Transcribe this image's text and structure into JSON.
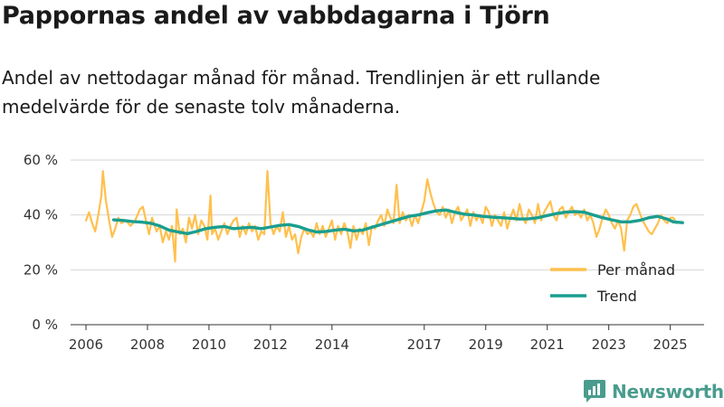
{
  "chart_data": {
    "type": "line",
    "title": "Pappornas andel av vabbdagarna i Tjörn",
    "subtitle": "Andel av nettodagar månad för månad. Trendlinjen är ett rullande medelvärde för de senaste tolv månaderna.",
    "xlabel": "",
    "ylabel": "",
    "ylim": [
      0,
      60
    ],
    "xlim": [
      2005.5,
      2026.1
    ],
    "yticks": [
      {
        "value": 0,
        "label": "0 %"
      },
      {
        "value": 20,
        "label": "20 %"
      },
      {
        "value": 40,
        "label": "40 %"
      },
      {
        "value": 60,
        "label": "60 %"
      }
    ],
    "xticks": [
      {
        "value": 2006,
        "label": "2006"
      },
      {
        "value": 2008,
        "label": "2008"
      },
      {
        "value": 2010,
        "label": "2010"
      },
      {
        "value": 2012,
        "label": "2012"
      },
      {
        "value": 2014,
        "label": "2014"
      },
      {
        "value": 2017,
        "label": "2017"
      },
      {
        "value": 2019,
        "label": "2019"
      },
      {
        "value": 2021,
        "label": "2021"
      },
      {
        "value": 2023,
        "label": "2023"
      },
      {
        "value": 2025,
        "label": "2025"
      }
    ],
    "grid": true,
    "legend_position": "bottom-right",
    "series": [
      {
        "name": "Per månad",
        "color": "#FFC04D",
        "points": [
          [
            2006.0,
            38
          ],
          [
            2006.1,
            41
          ],
          [
            2006.2,
            37
          ],
          [
            2006.3,
            34
          ],
          [
            2006.4,
            40
          ],
          [
            2006.5,
            47
          ],
          [
            2006.55,
            56
          ],
          [
            2006.65,
            45
          ],
          [
            2006.75,
            38
          ],
          [
            2006.85,
            32
          ],
          [
            2006.95,
            35
          ],
          [
            2007.05,
            39
          ],
          [
            2007.15,
            37
          ],
          [
            2007.3,
            38
          ],
          [
            2007.45,
            36
          ],
          [
            2007.6,
            38
          ],
          [
            2007.75,
            42
          ],
          [
            2007.85,
            43
          ],
          [
            2007.95,
            38
          ],
          [
            2008.05,
            33
          ],
          [
            2008.15,
            39
          ],
          [
            2008.3,
            34
          ],
          [
            2008.4,
            36
          ],
          [
            2008.5,
            30
          ],
          [
            2008.6,
            34
          ],
          [
            2008.7,
            31
          ],
          [
            2008.8,
            36
          ],
          [
            2008.9,
            23
          ],
          [
            2008.95,
            42
          ],
          [
            2009.05,
            33
          ],
          [
            2009.15,
            35
          ],
          [
            2009.25,
            30
          ],
          [
            2009.35,
            39
          ],
          [
            2009.45,
            35
          ],
          [
            2009.55,
            40
          ],
          [
            2009.65,
            33
          ],
          [
            2009.75,
            38
          ],
          [
            2009.85,
            36
          ],
          [
            2009.95,
            31
          ],
          [
            2010.05,
            47
          ],
          [
            2010.1,
            33
          ],
          [
            2010.2,
            35
          ],
          [
            2010.3,
            31
          ],
          [
            2010.4,
            34
          ],
          [
            2010.5,
            37
          ],
          [
            2010.6,
            33
          ],
          [
            2010.7,
            36
          ],
          [
            2010.8,
            38
          ],
          [
            2010.9,
            39
          ],
          [
            2011.0,
            32
          ],
          [
            2011.1,
            36
          ],
          [
            2011.2,
            33
          ],
          [
            2011.3,
            37
          ],
          [
            2011.4,
            34
          ],
          [
            2011.5,
            36
          ],
          [
            2011.6,
            31
          ],
          [
            2011.7,
            34
          ],
          [
            2011.8,
            33
          ],
          [
            2011.9,
            56
          ],
          [
            2012.0,
            37
          ],
          [
            2012.1,
            33
          ],
          [
            2012.2,
            36
          ],
          [
            2012.3,
            34
          ],
          [
            2012.4,
            41
          ],
          [
            2012.5,
            32
          ],
          [
            2012.6,
            36
          ],
          [
            2012.7,
            31
          ],
          [
            2012.8,
            33
          ],
          [
            2012.9,
            26
          ],
          [
            2013.0,
            32
          ],
          [
            2013.1,
            35
          ],
          [
            2013.2,
            33
          ],
          [
            2013.3,
            34
          ],
          [
            2013.4,
            32
          ],
          [
            2013.5,
            37
          ],
          [
            2013.6,
            33
          ],
          [
            2013.7,
            36
          ],
          [
            2013.8,
            32
          ],
          [
            2013.9,
            35
          ],
          [
            2014.0,
            38
          ],
          [
            2014.1,
            31
          ],
          [
            2014.2,
            36
          ],
          [
            2014.3,
            33
          ],
          [
            2014.4,
            37
          ],
          [
            2014.5,
            34
          ],
          [
            2014.6,
            28
          ],
          [
            2014.7,
            36
          ],
          [
            2014.8,
            31
          ],
          [
            2014.9,
            35
          ],
          [
            2015.0,
            33
          ],
          [
            2015.1,
            37
          ],
          [
            2015.2,
            29
          ],
          [
            2015.3,
            36
          ],
          [
            2015.4,
            35
          ],
          [
            2015.5,
            38
          ],
          [
            2015.6,
            40
          ],
          [
            2015.7,
            36
          ],
          [
            2015.8,
            42
          ],
          [
            2015.9,
            39
          ],
          [
            2016.0,
            37
          ],
          [
            2016.1,
            51
          ],
          [
            2016.2,
            37
          ],
          [
            2016.3,
            41
          ],
          [
            2016.4,
            38
          ],
          [
            2016.5,
            40
          ],
          [
            2016.6,
            36
          ],
          [
            2016.7,
            40
          ],
          [
            2016.8,
            37
          ],
          [
            2016.9,
            41
          ],
          [
            2017.0,
            45
          ],
          [
            2017.1,
            53
          ],
          [
            2017.2,
            48
          ],
          [
            2017.3,
            44
          ],
          [
            2017.4,
            41
          ],
          [
            2017.5,
            40
          ],
          [
            2017.6,
            43
          ],
          [
            2017.7,
            39
          ],
          [
            2017.8,
            42
          ],
          [
            2017.9,
            37
          ],
          [
            2018.0,
            41
          ],
          [
            2018.1,
            43
          ],
          [
            2018.2,
            38
          ],
          [
            2018.3,
            40
          ],
          [
            2018.4,
            42
          ],
          [
            2018.5,
            36
          ],
          [
            2018.6,
            41
          ],
          [
            2018.7,
            38
          ],
          [
            2018.8,
            40
          ],
          [
            2018.9,
            37
          ],
          [
            2019.0,
            43
          ],
          [
            2019.1,
            41
          ],
          [
            2019.2,
            36
          ],
          [
            2019.3,
            40
          ],
          [
            2019.4,
            38
          ],
          [
            2019.5,
            36
          ],
          [
            2019.6,
            41
          ],
          [
            2019.7,
            35
          ],
          [
            2019.8,
            39
          ],
          [
            2019.9,
            42
          ],
          [
            2020.0,
            38
          ],
          [
            2020.1,
            44
          ],
          [
            2020.2,
            39
          ],
          [
            2020.3,
            37
          ],
          [
            2020.4,
            42
          ],
          [
            2020.5,
            40
          ],
          [
            2020.6,
            37
          ],
          [
            2020.7,
            44
          ],
          [
            2020.8,
            38
          ],
          [
            2020.9,
            41
          ],
          [
            2021.0,
            43
          ],
          [
            2021.1,
            45
          ],
          [
            2021.2,
            40
          ],
          [
            2021.3,
            38
          ],
          [
            2021.4,
            42
          ],
          [
            2021.5,
            43
          ],
          [
            2021.6,
            39
          ],
          [
            2021.7,
            41
          ],
          [
            2021.8,
            43
          ],
          [
            2021.9,
            40
          ],
          [
            2022.0,
            41
          ],
          [
            2022.1,
            39
          ],
          [
            2022.2,
            42
          ],
          [
            2022.3,
            38
          ],
          [
            2022.4,
            40
          ],
          [
            2022.5,
            37
          ],
          [
            2022.6,
            32
          ],
          [
            2022.7,
            35
          ],
          [
            2022.8,
            39
          ],
          [
            2022.9,
            42
          ],
          [
            2023.0,
            40
          ],
          [
            2023.1,
            37
          ],
          [
            2023.2,
            35
          ],
          [
            2023.3,
            38
          ],
          [
            2023.4,
            35
          ],
          [
            2023.5,
            27
          ],
          [
            2023.6,
            38
          ],
          [
            2023.7,
            40
          ],
          [
            2023.8,
            43
          ],
          [
            2023.9,
            44
          ],
          [
            2024.0,
            41
          ],
          [
            2024.1,
            38
          ],
          [
            2024.2,
            36
          ],
          [
            2024.3,
            34
          ],
          [
            2024.4,
            33
          ],
          [
            2024.5,
            35
          ],
          [
            2024.6,
            37
          ],
          [
            2024.7,
            40
          ],
          [
            2024.8,
            38
          ],
          [
            2024.9,
            37
          ],
          [
            2025.0,
            39
          ],
          [
            2025.1,
            39
          ],
          [
            2025.2,
            37
          ]
        ]
      },
      {
        "name": "Trend",
        "color": "#1A9E8F",
        "points": [
          [
            2006.9,
            38.2
          ],
          [
            2007.2,
            38.0
          ],
          [
            2007.5,
            37.6
          ],
          [
            2007.8,
            37.4
          ],
          [
            2008.1,
            37.0
          ],
          [
            2008.4,
            36.0
          ],
          [
            2008.7,
            34.5
          ],
          [
            2009.0,
            33.8
          ],
          [
            2009.3,
            33.2
          ],
          [
            2009.6,
            34.0
          ],
          [
            2009.9,
            35.0
          ],
          [
            2010.2,
            35.5
          ],
          [
            2010.5,
            35.8
          ],
          [
            2010.8,
            35.0
          ],
          [
            2011.1,
            35.3
          ],
          [
            2011.4,
            35.5
          ],
          [
            2011.7,
            35.0
          ],
          [
            2012.0,
            35.6
          ],
          [
            2012.3,
            36.2
          ],
          [
            2012.6,
            36.5
          ],
          [
            2012.9,
            35.8
          ],
          [
            2013.2,
            34.6
          ],
          [
            2013.5,
            33.8
          ],
          [
            2013.8,
            34.0
          ],
          [
            2014.1,
            34.5
          ],
          [
            2014.4,
            34.8
          ],
          [
            2014.7,
            34.2
          ],
          [
            2015.0,
            34.5
          ],
          [
            2015.3,
            35.5
          ],
          [
            2015.6,
            36.5
          ],
          [
            2015.9,
            37.5
          ],
          [
            2016.2,
            38.5
          ],
          [
            2016.5,
            39.5
          ],
          [
            2016.8,
            40.0
          ],
          [
            2017.1,
            40.8
          ],
          [
            2017.4,
            41.5
          ],
          [
            2017.7,
            41.8
          ],
          [
            2018.0,
            41.0
          ],
          [
            2018.3,
            40.3
          ],
          [
            2018.6,
            40.0
          ],
          [
            2018.9,
            39.5
          ],
          [
            2019.2,
            39.2
          ],
          [
            2019.5,
            39.0
          ],
          [
            2019.8,
            38.8
          ],
          [
            2020.1,
            38.5
          ],
          [
            2020.4,
            38.6
          ],
          [
            2020.7,
            39.0
          ],
          [
            2021.0,
            39.8
          ],
          [
            2021.3,
            40.5
          ],
          [
            2021.6,
            41.0
          ],
          [
            2021.9,
            41.2
          ],
          [
            2022.2,
            41.0
          ],
          [
            2022.5,
            40.0
          ],
          [
            2022.8,
            39.0
          ],
          [
            2023.1,
            38.2
          ],
          [
            2023.4,
            37.5
          ],
          [
            2023.7,
            37.5
          ],
          [
            2024.0,
            38.0
          ],
          [
            2024.3,
            39.0
          ],
          [
            2024.6,
            39.5
          ],
          [
            2024.9,
            38.5
          ],
          [
            2025.1,
            37.5
          ],
          [
            2025.4,
            37.2
          ]
        ]
      }
    ]
  },
  "branding": {
    "logo_text": "Newsworthy",
    "logo_color": "#4A9C8E"
  }
}
